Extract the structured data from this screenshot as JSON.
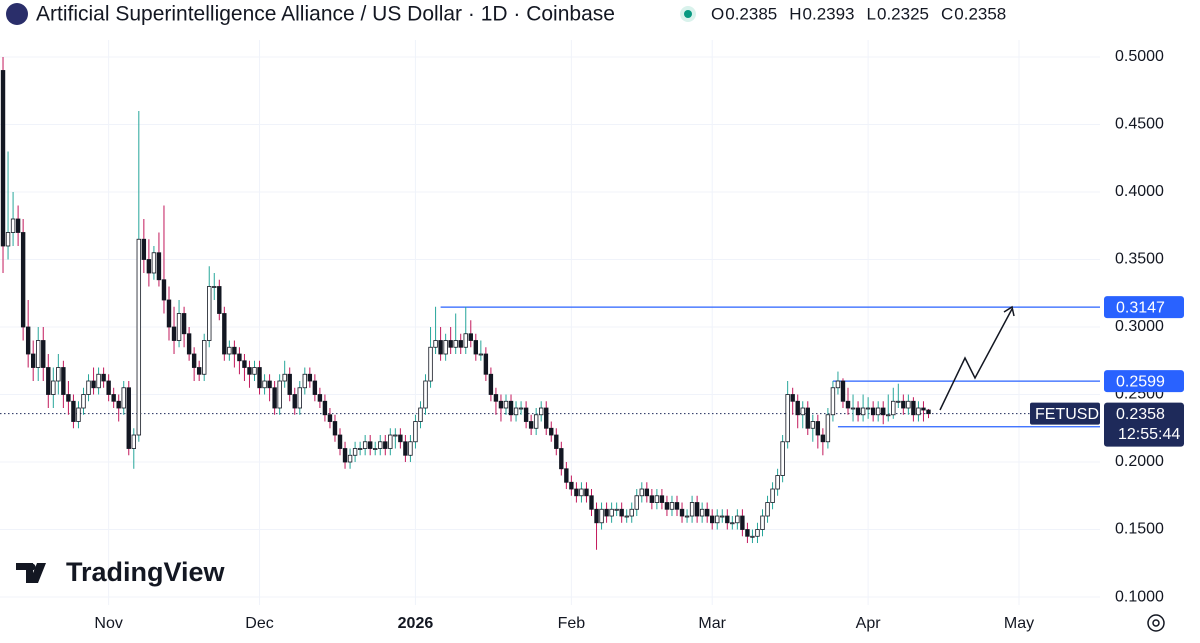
{
  "chart_data": {
    "type": "candlestick",
    "title": "Artificial Superintelligence Alliance / US Dollar · 1D · Coinbase",
    "ohlc_legend": [
      {
        "label": "O",
        "value": 0.2385
      },
      {
        "label": "H",
        "value": 0.2393
      },
      {
        "label": "L",
        "value": 0.2325
      },
      {
        "label": "C",
        "value": 0.2358
      }
    ],
    "symbol": "FETUSD",
    "countdown": "12:55:44",
    "last_price": 0.2358,
    "up_color": "#26a69a",
    "down_color": "#c2185b",
    "level_color": "#2962ff",
    "current_color": "#1e2a5a",
    "levels": [
      {
        "value": 0.3147,
        "x_start": 87
      },
      {
        "value": 0.2599,
        "x_start": 165
      },
      {
        "value": 0.2261,
        "x_start": 166
      }
    ],
    "xlim": [
      -0.6,
      218.1
    ],
    "ylim": [
      0.0941,
      0.5422
    ],
    "grid": true,
    "xticks": [
      {
        "value": 21,
        "label": "Nov"
      },
      {
        "value": 51,
        "label": "Dec"
      },
      {
        "value": 82,
        "label": "2026"
      },
      {
        "value": 113,
        "label": "Feb"
      },
      {
        "value": 141,
        "label": "Mar"
      },
      {
        "value": 172,
        "label": "Apr"
      },
      {
        "value": 202,
        "label": "May"
      }
    ],
    "yticks": [
      {
        "value": 0.1,
        "label": "0.1000"
      },
      {
        "value": 0.15,
        "label": "0.1500"
      },
      {
        "value": 0.2,
        "label": "0.2000"
      },
      {
        "value": 0.25,
        "label": "0.2500"
      },
      {
        "value": 0.3,
        "label": "0.3000"
      },
      {
        "value": 0.35,
        "label": "0.3500"
      },
      {
        "value": 0.4,
        "label": "0.4000"
      },
      {
        "value": 0.45,
        "label": "0.4500"
      },
      {
        "value": 0.5,
        "label": "0.5000"
      }
    ],
    "x": [
      0,
      1,
      2,
      3,
      4,
      5,
      6,
      7,
      8,
      9,
      10,
      11,
      12,
      13,
      14,
      15,
      16,
      17,
      18,
      19,
      20,
      21,
      22,
      23,
      24,
      25,
      26,
      27,
      28,
      29,
      30,
      31,
      32,
      33,
      34,
      35,
      36,
      37,
      38,
      39,
      40,
      41,
      42,
      43,
      44,
      45,
      46,
      47,
      48,
      49,
      50,
      51,
      52,
      53,
      54,
      55,
      56,
      57,
      58,
      59,
      60,
      61,
      62,
      63,
      64,
      65,
      66,
      67,
      68,
      69,
      70,
      71,
      72,
      73,
      74,
      75,
      76,
      77,
      78,
      79,
      80,
      81,
      82,
      83,
      84,
      85,
      86,
      87,
      88,
      89,
      90,
      91,
      92,
      93,
      94,
      95,
      96,
      97,
      98,
      99,
      100,
      101,
      102,
      103,
      104,
      105,
      106,
      107,
      108,
      109,
      110,
      111,
      112,
      113,
      114,
      115,
      116,
      117,
      118,
      119,
      120,
      121,
      122,
      123,
      124,
      125,
      126,
      127,
      128,
      129,
      130,
      131,
      132,
      133,
      134,
      135,
      136,
      137,
      138,
      139,
      140,
      141,
      142,
      143,
      144,
      145,
      146,
      147,
      148,
      149,
      150,
      151,
      152,
      153,
      154,
      155,
      156,
      157,
      158,
      159,
      160,
      161,
      162,
      163,
      164,
      165,
      166,
      167,
      168,
      169,
      170,
      171,
      172,
      173,
      174,
      175,
      176,
      177,
      178,
      179,
      180,
      181,
      182,
      183,
      184
    ],
    "ohlc": [
      [
        0.49,
        0.5,
        0.34,
        0.36
      ],
      [
        0.36,
        0.43,
        0.35,
        0.37
      ],
      [
        0.37,
        0.4,
        0.36,
        0.38
      ],
      [
        0.38,
        0.39,
        0.36,
        0.37
      ],
      [
        0.37,
        0.38,
        0.29,
        0.3
      ],
      [
        0.3,
        0.32,
        0.27,
        0.28
      ],
      [
        0.28,
        0.29,
        0.26,
        0.27
      ],
      [
        0.27,
        0.3,
        0.26,
        0.29
      ],
      [
        0.29,
        0.3,
        0.26,
        0.27
      ],
      [
        0.27,
        0.28,
        0.24,
        0.25
      ],
      [
        0.25,
        0.27,
        0.24,
        0.26
      ],
      [
        0.26,
        0.28,
        0.25,
        0.27
      ],
      [
        0.27,
        0.275,
        0.24,
        0.25
      ],
      [
        0.25,
        0.26,
        0.235,
        0.245
      ],
      [
        0.245,
        0.25,
        0.225,
        0.23
      ],
      [
        0.23,
        0.245,
        0.225,
        0.24
      ],
      [
        0.24,
        0.255,
        0.235,
        0.25
      ],
      [
        0.25,
        0.265,
        0.245,
        0.26
      ],
      [
        0.26,
        0.27,
        0.25,
        0.255
      ],
      [
        0.255,
        0.27,
        0.25,
        0.265
      ],
      [
        0.265,
        0.27,
        0.255,
        0.26
      ],
      [
        0.26,
        0.265,
        0.245,
        0.25
      ],
      [
        0.25,
        0.255,
        0.24,
        0.245
      ],
      [
        0.245,
        0.25,
        0.23,
        0.24
      ],
      [
        0.24,
        0.26,
        0.235,
        0.255
      ],
      [
        0.255,
        0.26,
        0.205,
        0.21
      ],
      [
        0.21,
        0.225,
        0.195,
        0.22
      ],
      [
        0.22,
        0.46,
        0.215,
        0.365
      ],
      [
        0.365,
        0.38,
        0.34,
        0.35
      ],
      [
        0.35,
        0.365,
        0.33,
        0.34
      ],
      [
        0.34,
        0.36,
        0.335,
        0.355
      ],
      [
        0.355,
        0.37,
        0.33,
        0.335
      ],
      [
        0.335,
        0.39,
        0.31,
        0.32
      ],
      [
        0.32,
        0.33,
        0.29,
        0.3
      ],
      [
        0.3,
        0.315,
        0.28,
        0.29
      ],
      [
        0.29,
        0.32,
        0.285,
        0.31
      ],
      [
        0.31,
        0.315,
        0.285,
        0.295
      ],
      [
        0.295,
        0.3,
        0.275,
        0.28
      ],
      [
        0.28,
        0.285,
        0.26,
        0.27
      ],
      [
        0.27,
        0.275,
        0.26,
        0.265
      ],
      [
        0.265,
        0.295,
        0.26,
        0.29
      ],
      [
        0.29,
        0.345,
        0.285,
        0.33
      ],
      [
        0.33,
        0.34,
        0.32,
        0.33
      ],
      [
        0.33,
        0.335,
        0.305,
        0.31
      ],
      [
        0.31,
        0.315,
        0.275,
        0.28
      ],
      [
        0.28,
        0.29,
        0.275,
        0.285
      ],
      [
        0.285,
        0.29,
        0.27,
        0.28
      ],
      [
        0.28,
        0.285,
        0.265,
        0.275
      ],
      [
        0.275,
        0.28,
        0.26,
        0.27
      ],
      [
        0.27,
        0.275,
        0.255,
        0.265
      ],
      [
        0.265,
        0.275,
        0.26,
        0.27
      ],
      [
        0.27,
        0.275,
        0.25,
        0.255
      ],
      [
        0.255,
        0.265,
        0.25,
        0.26
      ],
      [
        0.26,
        0.265,
        0.245,
        0.255
      ],
      [
        0.255,
        0.26,
        0.235,
        0.24
      ],
      [
        0.24,
        0.265,
        0.235,
        0.26
      ],
      [
        0.26,
        0.275,
        0.255,
        0.265
      ],
      [
        0.265,
        0.27,
        0.245,
        0.25
      ],
      [
        0.25,
        0.255,
        0.235,
        0.24
      ],
      [
        0.24,
        0.26,
        0.235,
        0.255
      ],
      [
        0.255,
        0.27,
        0.25,
        0.265
      ],
      [
        0.265,
        0.27,
        0.255,
        0.26
      ],
      [
        0.26,
        0.265,
        0.245,
        0.25
      ],
      [
        0.25,
        0.255,
        0.24,
        0.245
      ],
      [
        0.245,
        0.25,
        0.23,
        0.235
      ],
      [
        0.235,
        0.24,
        0.225,
        0.23
      ],
      [
        0.23,
        0.235,
        0.215,
        0.22
      ],
      [
        0.22,
        0.225,
        0.205,
        0.21
      ],
      [
        0.21,
        0.215,
        0.195,
        0.2
      ],
      [
        0.2,
        0.21,
        0.195,
        0.205
      ],
      [
        0.205,
        0.215,
        0.2,
        0.21
      ],
      [
        0.21,
        0.215,
        0.205,
        0.21
      ],
      [
        0.21,
        0.22,
        0.205,
        0.215
      ],
      [
        0.215,
        0.22,
        0.205,
        0.21
      ],
      [
        0.21,
        0.215,
        0.205,
        0.21
      ],
      [
        0.21,
        0.22,
        0.205,
        0.215
      ],
      [
        0.215,
        0.22,
        0.205,
        0.21
      ],
      [
        0.21,
        0.225,
        0.205,
        0.22
      ],
      [
        0.22,
        0.225,
        0.21,
        0.22
      ],
      [
        0.22,
        0.225,
        0.21,
        0.215
      ],
      [
        0.215,
        0.22,
        0.2,
        0.205
      ],
      [
        0.205,
        0.22,
        0.2,
        0.215
      ],
      [
        0.215,
        0.235,
        0.21,
        0.23
      ],
      [
        0.23,
        0.245,
        0.225,
        0.24
      ],
      [
        0.24,
        0.265,
        0.235,
        0.26
      ],
      [
        0.26,
        0.3,
        0.255,
        0.285
      ],
      [
        0.285,
        0.315,
        0.28,
        0.29
      ],
      [
        0.29,
        0.3,
        0.275,
        0.28
      ],
      [
        0.28,
        0.295,
        0.275,
        0.29
      ],
      [
        0.29,
        0.3,
        0.28,
        0.285
      ],
      [
        0.285,
        0.31,
        0.28,
        0.29
      ],
      [
        0.29,
        0.295,
        0.28,
        0.285
      ],
      [
        0.285,
        0.315,
        0.28,
        0.295
      ],
      [
        0.295,
        0.305,
        0.285,
        0.29
      ],
      [
        0.29,
        0.295,
        0.275,
        0.28
      ],
      [
        0.28,
        0.29,
        0.275,
        0.28
      ],
      [
        0.28,
        0.285,
        0.26,
        0.265
      ],
      [
        0.265,
        0.27,
        0.245,
        0.25
      ],
      [
        0.25,
        0.255,
        0.235,
        0.245
      ],
      [
        0.245,
        0.25,
        0.23,
        0.24
      ],
      [
        0.24,
        0.25,
        0.235,
        0.245
      ],
      [
        0.245,
        0.25,
        0.23,
        0.235
      ],
      [
        0.235,
        0.245,
        0.23,
        0.24
      ],
      [
        0.24,
        0.245,
        0.235,
        0.24
      ],
      [
        0.24,
        0.245,
        0.225,
        0.23
      ],
      [
        0.23,
        0.235,
        0.22,
        0.225
      ],
      [
        0.225,
        0.24,
        0.22,
        0.235
      ],
      [
        0.235,
        0.245,
        0.23,
        0.24
      ],
      [
        0.24,
        0.245,
        0.22,
        0.225
      ],
      [
        0.225,
        0.23,
        0.215,
        0.22
      ],
      [
        0.22,
        0.225,
        0.205,
        0.21
      ],
      [
        0.21,
        0.215,
        0.19,
        0.195
      ],
      [
        0.195,
        0.2,
        0.18,
        0.185
      ],
      [
        0.185,
        0.19,
        0.175,
        0.18
      ],
      [
        0.18,
        0.185,
        0.17,
        0.175
      ],
      [
        0.175,
        0.185,
        0.17,
        0.18
      ],
      [
        0.18,
        0.185,
        0.17,
        0.175
      ],
      [
        0.175,
        0.18,
        0.16,
        0.165
      ],
      [
        0.165,
        0.17,
        0.135,
        0.155
      ],
      [
        0.155,
        0.17,
        0.15,
        0.165
      ],
      [
        0.165,
        0.17,
        0.155,
        0.16
      ],
      [
        0.16,
        0.17,
        0.155,
        0.165
      ],
      [
        0.165,
        0.17,
        0.16,
        0.165
      ],
      [
        0.165,
        0.17,
        0.155,
        0.16
      ],
      [
        0.16,
        0.165,
        0.155,
        0.16
      ],
      [
        0.16,
        0.17,
        0.155,
        0.165
      ],
      [
        0.165,
        0.18,
        0.16,
        0.175
      ],
      [
        0.175,
        0.185,
        0.17,
        0.18
      ],
      [
        0.18,
        0.185,
        0.17,
        0.175
      ],
      [
        0.175,
        0.18,
        0.165,
        0.17
      ],
      [
        0.17,
        0.18,
        0.165,
        0.175
      ],
      [
        0.175,
        0.18,
        0.165,
        0.17
      ],
      [
        0.17,
        0.175,
        0.16,
        0.165
      ],
      [
        0.165,
        0.175,
        0.16,
        0.17
      ],
      [
        0.17,
        0.175,
        0.16,
        0.165
      ],
      [
        0.165,
        0.17,
        0.155,
        0.16
      ],
      [
        0.16,
        0.165,
        0.155,
        0.16
      ],
      [
        0.16,
        0.175,
        0.155,
        0.17
      ],
      [
        0.17,
        0.175,
        0.155,
        0.16
      ],
      [
        0.16,
        0.17,
        0.155,
        0.165
      ],
      [
        0.165,
        0.17,
        0.155,
        0.16
      ],
      [
        0.16,
        0.165,
        0.15,
        0.155
      ],
      [
        0.155,
        0.165,
        0.15,
        0.16
      ],
      [
        0.16,
        0.165,
        0.155,
        0.16
      ],
      [
        0.16,
        0.165,
        0.15,
        0.155
      ],
      [
        0.155,
        0.16,
        0.15,
        0.155
      ],
      [
        0.155,
        0.165,
        0.15,
        0.16
      ],
      [
        0.16,
        0.165,
        0.145,
        0.15
      ],
      [
        0.15,
        0.155,
        0.14,
        0.145
      ],
      [
        0.145,
        0.15,
        0.14,
        0.145
      ],
      [
        0.145,
        0.155,
        0.14,
        0.15
      ],
      [
        0.15,
        0.165,
        0.145,
        0.16
      ],
      [
        0.16,
        0.175,
        0.155,
        0.17
      ],
      [
        0.17,
        0.185,
        0.165,
        0.18
      ],
      [
        0.18,
        0.195,
        0.175,
        0.19
      ],
      [
        0.19,
        0.22,
        0.185,
        0.215
      ],
      [
        0.215,
        0.26,
        0.21,
        0.25
      ],
      [
        0.25,
        0.255,
        0.235,
        0.245
      ],
      [
        0.245,
        0.25,
        0.225,
        0.235
      ],
      [
        0.235,
        0.245,
        0.225,
        0.24
      ],
      [
        0.24,
        0.245,
        0.22,
        0.225
      ],
      [
        0.225,
        0.235,
        0.215,
        0.23
      ],
      [
        0.23,
        0.235,
        0.21,
        0.22
      ],
      [
        0.22,
        0.225,
        0.205,
        0.215
      ],
      [
        0.215,
        0.24,
        0.21,
        0.235
      ],
      [
        0.235,
        0.26,
        0.23,
        0.255
      ],
      [
        0.255,
        0.267,
        0.25,
        0.26
      ],
      [
        0.26,
        0.262,
        0.24,
        0.245
      ],
      [
        0.245,
        0.255,
        0.235,
        0.24
      ],
      [
        0.24,
        0.25,
        0.23,
        0.24
      ],
      [
        0.24,
        0.245,
        0.23,
        0.235
      ],
      [
        0.235,
        0.25,
        0.23,
        0.24
      ],
      [
        0.24,
        0.248,
        0.232,
        0.24
      ],
      [
        0.24,
        0.245,
        0.23,
        0.235
      ],
      [
        0.235,
        0.245,
        0.23,
        0.24
      ],
      [
        0.24,
        0.245,
        0.228,
        0.235
      ],
      [
        0.235,
        0.25,
        0.23,
        0.235
      ],
      [
        0.235,
        0.255,
        0.232,
        0.245
      ],
      [
        0.245,
        0.258,
        0.24,
        0.245
      ],
      [
        0.245,
        0.25,
        0.235,
        0.24
      ],
      [
        0.24,
        0.25,
        0.235,
        0.245
      ],
      [
        0.245,
        0.248,
        0.23,
        0.235
      ],
      [
        0.235,
        0.245,
        0.23,
        0.24
      ],
      [
        0.24,
        0.245,
        0.23,
        0.2385
      ],
      [
        0.2385,
        0.2393,
        0.2325,
        0.2358
      ]
    ],
    "brand": "TradingView"
  }
}
